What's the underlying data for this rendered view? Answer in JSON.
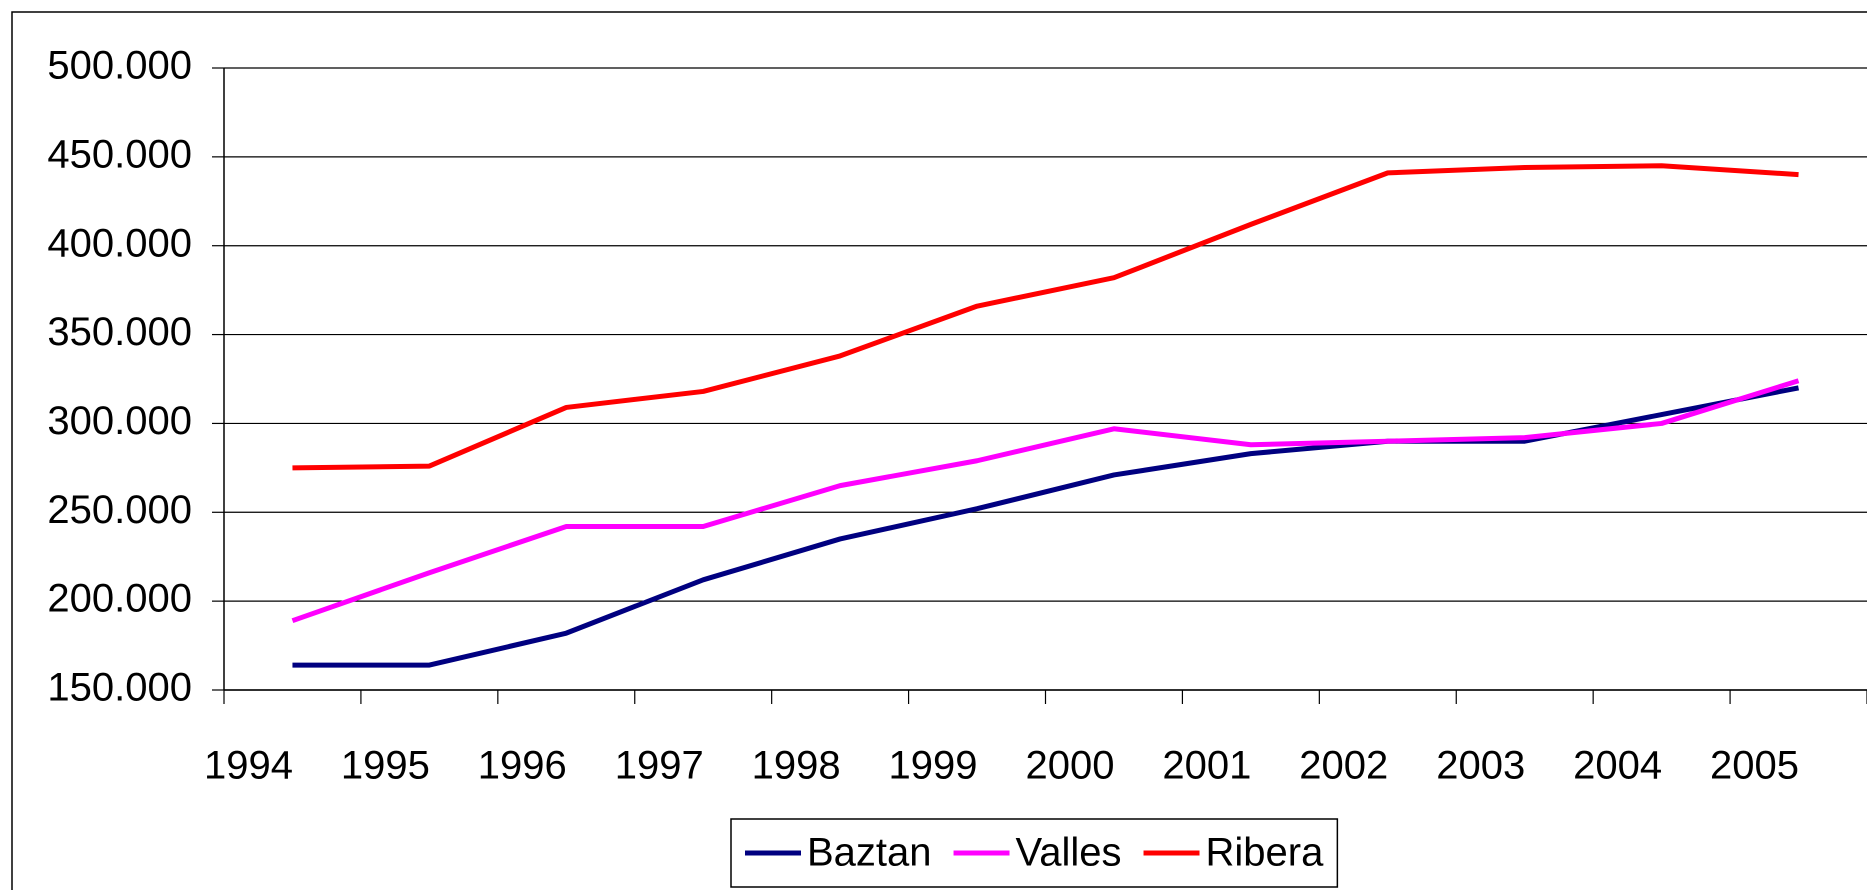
{
  "chart_data": {
    "type": "line",
    "categories": [
      "1994",
      "1995",
      "1996",
      "1997",
      "1998",
      "1999",
      "2000",
      "2001",
      "2002",
      "2003",
      "2004",
      "2005"
    ],
    "series": [
      {
        "name": "Baztan",
        "color": "#000080",
        "values": [
          164000,
          164000,
          182000,
          212000,
          235000,
          252000,
          271000,
          283000,
          290000,
          290000,
          305000,
          320000
        ]
      },
      {
        "name": "Valles",
        "color": "#ff00ff",
        "values": [
          189000,
          216000,
          242000,
          242000,
          265000,
          279000,
          297000,
          288000,
          290000,
          292000,
          300000,
          324000
        ]
      },
      {
        "name": "Ribera",
        "color": "#ff0000",
        "values": [
          275000,
          276000,
          309000,
          318000,
          338000,
          366000,
          382000,
          412000,
          441000,
          444000,
          445000,
          440000
        ]
      }
    ],
    "ylim": [
      150000,
      500000
    ],
    "yticks": [
      {
        "value": 150000,
        "label": "150.000"
      },
      {
        "value": 200000,
        "label": "200.000"
      },
      {
        "value": 250000,
        "label": "250.000"
      },
      {
        "value": 300000,
        "label": "300.000"
      },
      {
        "value": 350000,
        "label": "350.000"
      },
      {
        "value": 400000,
        "label": "400.000"
      },
      {
        "value": 450000,
        "label": "450.000"
      },
      {
        "value": 500000,
        "label": "500.000"
      }
    ],
    "grid": true,
    "legend": "bottom"
  }
}
